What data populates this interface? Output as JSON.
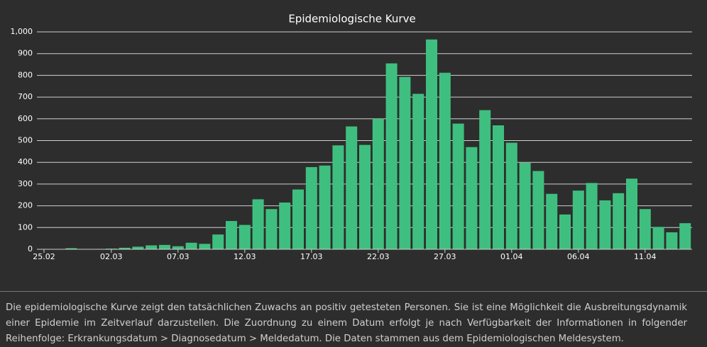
{
  "chart_data": {
    "type": "bar",
    "title": "Epidemiologische Kurve",
    "categories": [
      "25.02",
      null,
      null,
      null,
      null,
      null,
      "02.03",
      null,
      null,
      null,
      null,
      "07.03",
      null,
      null,
      null,
      null,
      "12.03",
      null,
      null,
      null,
      null,
      "17.03",
      null,
      null,
      null,
      null,
      "22.03",
      null,
      null,
      null,
      null,
      "27.03",
      null,
      null,
      null,
      null,
      "01.04",
      null,
      null,
      null,
      null,
      "06.04",
      null,
      null,
      null,
      null,
      "11.04",
      null,
      null,
      null
    ],
    "values": [
      0,
      1,
      0,
      5,
      1,
      1,
      3,
      7,
      12,
      18,
      20,
      14,
      30,
      25,
      68,
      130,
      112,
      230,
      185,
      215,
      275,
      378,
      385,
      478,
      565,
      480,
      600,
      855,
      793,
      715,
      965,
      812,
      578,
      470,
      640,
      570,
      490,
      398,
      360,
      255,
      160,
      270,
      305,
      225,
      258,
      325,
      185,
      103,
      78,
      120
    ],
    "color": "#3fbf7f",
    "ylim": [
      0,
      1000
    ],
    "yticks": [
      0,
      100,
      200,
      300,
      400,
      500,
      600,
      700,
      800,
      900,
      {
        "value": 1000,
        "label": "1,000"
      }
    ],
    "grid": true
  },
  "footer": {
    "text": "Die epidemiologische Kurve zeigt den tatsächlichen Zuwachs an positiv getesteten Personen. Sie ist eine Möglichkeit die Ausbreitungsdynamik einer Epidemie im Zeitverlauf darzustellen. Die Zuordnung zu einem Datum erfolgt je nach Verfügbarkeit der Informationen in folgender Reihenfolge: Erkrankungsdatum > Diagnosedatum > Meldedatum. Die Daten stammen aus dem Epidemiologischen Meldesystem."
  }
}
